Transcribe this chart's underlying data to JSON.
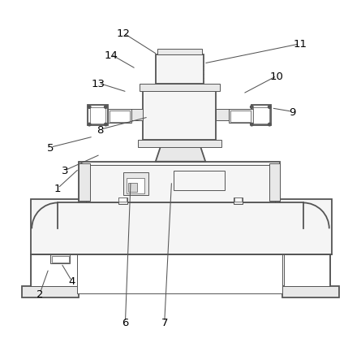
{
  "background_color": "#ffffff",
  "line_color": "#555555",
  "label_color": "#000000",
  "lw_main": 1.3,
  "lw_thin": 0.7,
  "lw_detail": 0.5,
  "leader_data": [
    [
      "1",
      [
        0.155,
        0.47
      ],
      [
        0.215,
        0.525
      ]
    ],
    [
      "2",
      [
        0.105,
        0.175
      ],
      [
        0.13,
        0.245
      ]
    ],
    [
      "3",
      [
        0.175,
        0.52
      ],
      [
        0.275,
        0.565
      ]
    ],
    [
      "4",
      [
        0.195,
        0.21
      ],
      [
        0.165,
        0.26
      ]
    ],
    [
      "5",
      [
        0.135,
        0.585
      ],
      [
        0.255,
        0.615
      ]
    ],
    [
      "6",
      [
        0.345,
        0.095
      ],
      [
        0.36,
        0.49
      ]
    ],
    [
      "7",
      [
        0.455,
        0.095
      ],
      [
        0.475,
        0.49
      ]
    ],
    [
      "8",
      [
        0.275,
        0.635
      ],
      [
        0.41,
        0.67
      ]
    ],
    [
      "9",
      [
        0.815,
        0.685
      ],
      [
        0.755,
        0.695
      ]
    ],
    [
      "10",
      [
        0.77,
        0.785
      ],
      [
        0.675,
        0.735
      ]
    ],
    [
      "11",
      [
        0.835,
        0.875
      ],
      [
        0.565,
        0.82
      ]
    ],
    [
      "12",
      [
        0.34,
        0.905
      ],
      [
        0.435,
        0.845
      ]
    ],
    [
      "13",
      [
        0.27,
        0.765
      ],
      [
        0.35,
        0.74
      ]
    ],
    [
      "14",
      [
        0.305,
        0.845
      ],
      [
        0.375,
        0.805
      ]
    ]
  ]
}
